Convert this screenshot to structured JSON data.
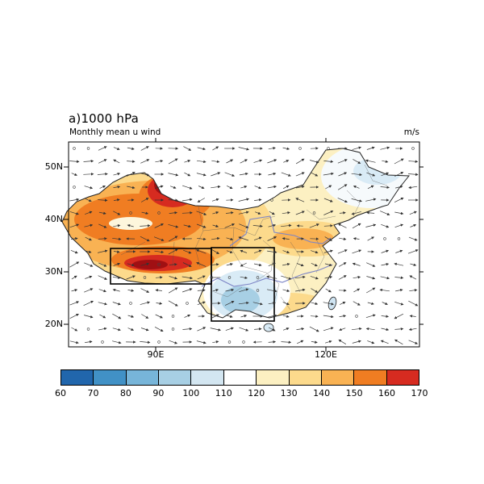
{
  "title": "a)1000 hPa",
  "subtitle_left": "Monthly mean u wind",
  "units_right": "m/s",
  "axes": {
    "y_ticks": [
      "50N",
      "40N",
      "30N",
      "20N"
    ],
    "x_ticks": [
      "90E",
      "120E"
    ]
  },
  "chart_data": {
    "type": "heatmap",
    "title": "a)1000 hPa",
    "subtitle": "Monthly mean u wind",
    "units": "m/s",
    "geography": "China map with province boundaries, rivers and overlaid wind vectors",
    "x_axis": {
      "tick_labels": [
        "90E",
        "120E"
      ]
    },
    "y_axis": {
      "tick_labels": [
        "50N",
        "40N",
        "30N",
        "20N"
      ]
    },
    "colorbar": {
      "levels": [
        60,
        70,
        80,
        90,
        100,
        110,
        120,
        130,
        140,
        150,
        160,
        170
      ],
      "colors": [
        "#2166ac",
        "#4191c6",
        "#77b5d9",
        "#a7cfe4",
        "#d3e6f1",
        "#ffffff",
        "#fcf0c2",
        "#fcda8c",
        "#f9b253",
        "#f07d22",
        "#d62b20"
      ],
      "over_color": "#a01013",
      "orientation": "horizontal"
    },
    "shaded_regions": [
      {
        "name": "maximum-north-xinjiang",
        "approx_value": "160-170+"
      },
      {
        "name": "high-west-china-tibet-xinjiang",
        "approx_value": "140-160"
      },
      {
        "name": "high-band-south-tibetan-plateau",
        "approx_value": "160-170+"
      },
      {
        "name": "moderate-east-central-china",
        "approx_value": "130-150"
      },
      {
        "name": "low-sichuan-southwest",
        "approx_value": "90-110"
      },
      {
        "name": "pale-northeast-china",
        "approx_value": "100-120"
      },
      {
        "name": "background-china",
        "approx_value": "120-130"
      }
    ],
    "outlined_boxes": [
      {
        "name": "tibetan-plateau-box"
      },
      {
        "name": "southwest-china-box"
      }
    ],
    "overlay": "wind vector field (small arrows on regular grid)"
  }
}
